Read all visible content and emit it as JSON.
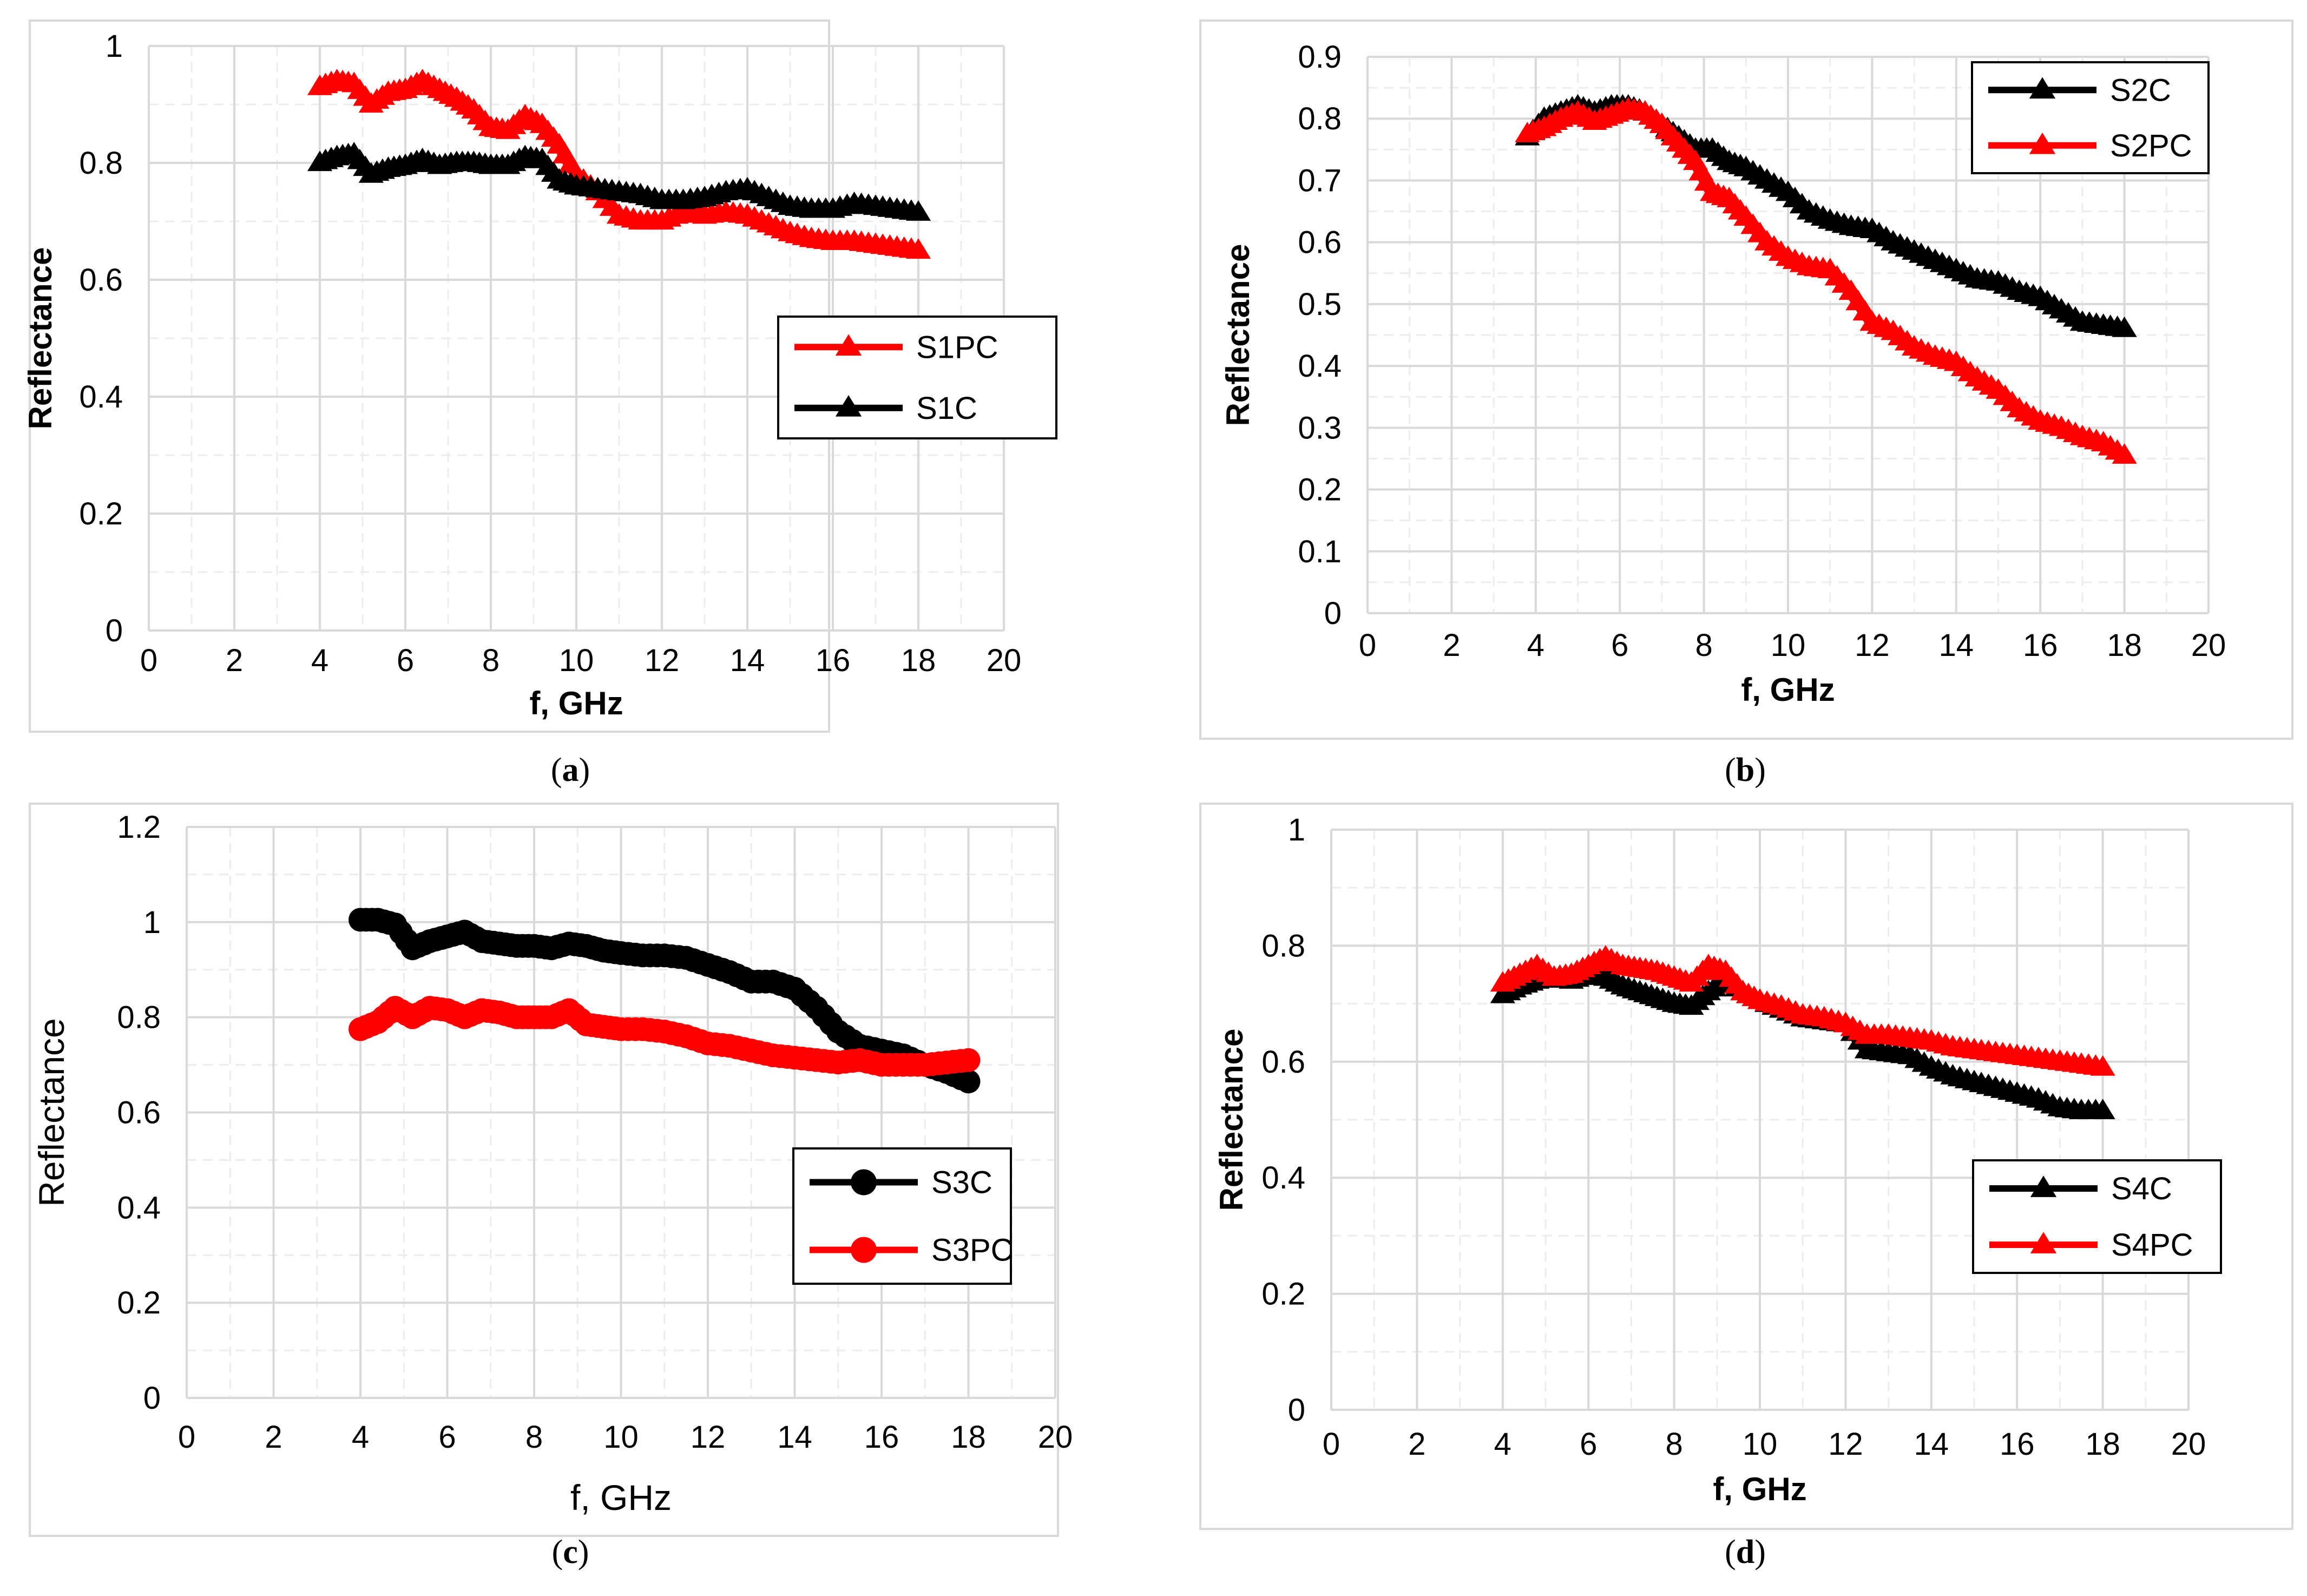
{
  "chart_data": [
    {
      "type": "line",
      "caption_letter": "a",
      "xlabel": "f, GHz",
      "ylabel": "Reflectance",
      "xlim": [
        0,
        20
      ],
      "ylim": [
        0,
        1
      ],
      "xticks": [
        "0",
        "2",
        "4",
        "6",
        "8",
        "10",
        "12",
        "14",
        "16",
        "18",
        "20"
      ],
      "yticks": [
        "0",
        "0.2",
        "0.4",
        "0.6",
        "0.8",
        "1"
      ],
      "marker": "triangle",
      "legend_position": "right-middle",
      "series": [
        {
          "name": "S1PC",
          "color": "#ff0000",
          "x": [
            4.0,
            4.4,
            4.8,
            5.2,
            5.6,
            6.0,
            6.4,
            6.8,
            7.2,
            7.6,
            8.0,
            8.4,
            8.8,
            9.2,
            9.6,
            10.0,
            10.5,
            11.0,
            11.5,
            12.0,
            12.5,
            13.0,
            13.5,
            14.0,
            14.5,
            15.0,
            15.5,
            16.0,
            16.5,
            17.0,
            17.5,
            18.0
          ],
          "y": [
            0.93,
            0.94,
            0.935,
            0.9,
            0.92,
            0.925,
            0.94,
            0.925,
            0.91,
            0.89,
            0.86,
            0.855,
            0.88,
            0.865,
            0.83,
            0.78,
            0.75,
            0.71,
            0.7,
            0.7,
            0.715,
            0.71,
            0.715,
            0.71,
            0.695,
            0.68,
            0.67,
            0.665,
            0.665,
            0.66,
            0.655,
            0.65
          ]
        },
        {
          "name": "S1C",
          "color": "#000000",
          "x": [
            4.0,
            4.4,
            4.8,
            5.2,
            5.6,
            6.0,
            6.4,
            6.8,
            7.2,
            7.6,
            8.0,
            8.4,
            8.8,
            9.2,
            9.6,
            10.0,
            10.5,
            11.0,
            11.5,
            12.0,
            12.5,
            13.0,
            13.5,
            14.0,
            14.5,
            15.0,
            15.5,
            16.0,
            16.5,
            17.0,
            17.5,
            18.0
          ],
          "y": [
            0.8,
            0.81,
            0.815,
            0.78,
            0.79,
            0.795,
            0.805,
            0.795,
            0.8,
            0.8,
            0.795,
            0.795,
            0.81,
            0.805,
            0.77,
            0.76,
            0.755,
            0.75,
            0.745,
            0.735,
            0.735,
            0.74,
            0.75,
            0.755,
            0.74,
            0.725,
            0.72,
            0.72,
            0.73,
            0.725,
            0.72,
            0.715
          ]
        }
      ]
    },
    {
      "type": "line",
      "caption_letter": "b",
      "xlabel": "f, GHz",
      "ylabel": "Reflectance",
      "xlim": [
        0,
        20
      ],
      "ylim": [
        0,
        0.9
      ],
      "xticks": [
        "0",
        "2",
        "4",
        "6",
        "8",
        "10",
        "12",
        "14",
        "16",
        "18",
        "20"
      ],
      "yticks": [
        "0",
        "0.1",
        "0.2",
        "0.3",
        "0.4",
        "0.5",
        "0.6",
        "0.7",
        "0.8",
        "0.9"
      ],
      "marker": "triangle",
      "legend_position": "top-right",
      "series": [
        {
          "name": "S2C",
          "color": "#000000",
          "x": [
            3.8,
            4.2,
            4.6,
            5.0,
            5.4,
            5.8,
            6.2,
            6.6,
            7.0,
            7.4,
            7.8,
            8.2,
            8.6,
            9.0,
            9.5,
            10.0,
            10.5,
            11.0,
            11.5,
            12.0,
            12.5,
            13.0,
            13.5,
            14.0,
            14.5,
            15.0,
            15.5,
            16.0,
            16.5,
            17.0,
            17.5,
            18.0
          ],
          "y": [
            0.77,
            0.8,
            0.81,
            0.82,
            0.81,
            0.82,
            0.82,
            0.81,
            0.79,
            0.77,
            0.75,
            0.75,
            0.73,
            0.72,
            0.7,
            0.68,
            0.65,
            0.635,
            0.625,
            0.62,
            0.6,
            0.585,
            0.57,
            0.555,
            0.54,
            0.535,
            0.52,
            0.51,
            0.49,
            0.47,
            0.465,
            0.46
          ]
        },
        {
          "name": "S2PC",
          "color": "#ff0000",
          "x": [
            3.8,
            4.2,
            4.6,
            5.0,
            5.4,
            5.8,
            6.2,
            6.6,
            7.0,
            7.4,
            7.8,
            8.2,
            8.6,
            9.0,
            9.5,
            10.0,
            10.5,
            11.0,
            11.5,
            12.0,
            12.5,
            13.0,
            13.5,
            14.0,
            14.5,
            15.0,
            15.5,
            16.0,
            16.5,
            17.0,
            17.5,
            18.0
          ],
          "y": [
            0.775,
            0.785,
            0.8,
            0.81,
            0.795,
            0.805,
            0.815,
            0.81,
            0.79,
            0.76,
            0.73,
            0.68,
            0.67,
            0.64,
            0.6,
            0.575,
            0.56,
            0.555,
            0.52,
            0.47,
            0.455,
            0.43,
            0.415,
            0.405,
            0.38,
            0.36,
            0.33,
            0.31,
            0.3,
            0.285,
            0.275,
            0.255
          ]
        }
      ]
    },
    {
      "type": "line",
      "caption_letter": "c",
      "xlabel": "f, GHz",
      "ylabel": "Reflectance",
      "xlim": [
        0,
        20
      ],
      "ylim": [
        0,
        1.2
      ],
      "xticks": [
        "0",
        "2",
        "4",
        "6",
        "8",
        "10",
        "12",
        "14",
        "16",
        "18",
        "20"
      ],
      "yticks": [
        "0",
        "0.2",
        "0.4",
        "0.6",
        "0.8",
        "1",
        "1.2"
      ],
      "marker": "circle",
      "legend_position": "right-middle",
      "series": [
        {
          "name": "S3C",
          "color": "#000000",
          "x": [
            4.0,
            4.4,
            4.8,
            5.2,
            5.6,
            6.0,
            6.4,
            6.8,
            7.2,
            7.6,
            8.0,
            8.4,
            8.8,
            9.2,
            9.6,
            10.0,
            10.5,
            11.0,
            11.5,
            12.0,
            12.5,
            13.0,
            13.5,
            14.0,
            14.5,
            15.0,
            15.5,
            16.0,
            16.5,
            17.0,
            17.5,
            18.0
          ],
          "y": [
            1.005,
            1.005,
            0.995,
            0.945,
            0.96,
            0.97,
            0.98,
            0.96,
            0.955,
            0.95,
            0.95,
            0.945,
            0.955,
            0.95,
            0.94,
            0.935,
            0.93,
            0.93,
            0.925,
            0.91,
            0.895,
            0.875,
            0.875,
            0.86,
            0.82,
            0.77,
            0.74,
            0.73,
            0.72,
            0.7,
            0.685,
            0.665
          ]
        },
        {
          "name": "S3PC",
          "color": "#ff0000",
          "x": [
            4.0,
            4.4,
            4.8,
            5.2,
            5.6,
            6.0,
            6.4,
            6.8,
            7.2,
            7.6,
            8.0,
            8.4,
            8.8,
            9.2,
            9.6,
            10.0,
            10.5,
            11.0,
            11.5,
            12.0,
            12.5,
            13.0,
            13.5,
            14.0,
            14.5,
            15.0,
            15.5,
            16.0,
            16.5,
            17.0,
            17.5,
            18.0
          ],
          "y": [
            0.775,
            0.79,
            0.82,
            0.8,
            0.82,
            0.815,
            0.8,
            0.815,
            0.81,
            0.8,
            0.8,
            0.8,
            0.815,
            0.785,
            0.78,
            0.775,
            0.775,
            0.77,
            0.76,
            0.745,
            0.74,
            0.73,
            0.72,
            0.715,
            0.71,
            0.705,
            0.71,
            0.7,
            0.7,
            0.7,
            0.705,
            0.71
          ]
        }
      ]
    },
    {
      "type": "line",
      "caption_letter": "d",
      "xlabel": "f, GHz",
      "ylabel": "Reflectance",
      "xlim": [
        0,
        20
      ],
      "ylim": [
        0,
        1
      ],
      "xticks": [
        "0",
        "2",
        "4",
        "6",
        "8",
        "10",
        "12",
        "14",
        "16",
        "18",
        "20"
      ],
      "yticks": [
        "0",
        "0.2",
        "0.4",
        "0.6",
        "0.8",
        "1"
      ],
      "marker": "triangle",
      "legend_position": "right-lower",
      "series": [
        {
          "name": "S4C",
          "color": "#000000",
          "x": [
            4.0,
            4.4,
            4.8,
            5.2,
            5.6,
            6.0,
            6.4,
            6.8,
            7.2,
            7.6,
            8.0,
            8.4,
            8.8,
            9.2,
            9.6,
            10.0,
            10.5,
            11.0,
            11.5,
            12.0,
            12.5,
            13.0,
            13.5,
            14.0,
            14.5,
            15.0,
            15.5,
            16.0,
            16.5,
            17.0,
            17.5,
            18.0
          ],
          "y": [
            0.715,
            0.73,
            0.74,
            0.745,
            0.74,
            0.75,
            0.745,
            0.73,
            0.72,
            0.71,
            0.7,
            0.695,
            0.72,
            0.74,
            0.72,
            0.705,
            0.69,
            0.675,
            0.67,
            0.665,
            0.62,
            0.615,
            0.61,
            0.59,
            0.575,
            0.565,
            0.555,
            0.545,
            0.535,
            0.52,
            0.515,
            0.515
          ]
        },
        {
          "name": "S4PC",
          "color": "#ff0000",
          "x": [
            4.0,
            4.4,
            4.8,
            5.2,
            5.6,
            6.0,
            6.4,
            6.8,
            7.2,
            7.6,
            8.0,
            8.4,
            8.8,
            9.2,
            9.6,
            10.0,
            10.5,
            11.0,
            11.5,
            12.0,
            12.5,
            13.0,
            13.5,
            14.0,
            14.5,
            15.0,
            15.5,
            16.0,
            16.5,
            17.0,
            17.5,
            18.0
          ],
          "y": [
            0.735,
            0.75,
            0.765,
            0.745,
            0.75,
            0.765,
            0.78,
            0.765,
            0.76,
            0.755,
            0.745,
            0.735,
            0.765,
            0.755,
            0.72,
            0.705,
            0.695,
            0.68,
            0.675,
            0.665,
            0.645,
            0.645,
            0.64,
            0.635,
            0.625,
            0.62,
            0.615,
            0.61,
            0.605,
            0.6,
            0.595,
            0.59
          ]
        }
      ]
    }
  ]
}
